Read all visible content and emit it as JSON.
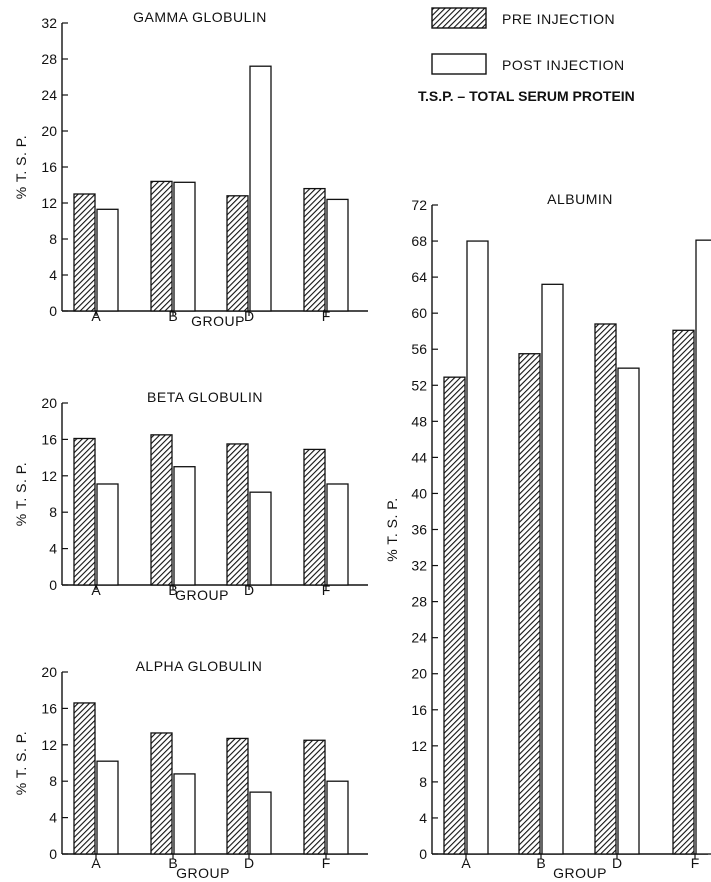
{
  "legend": {
    "pre_label": "PRE INJECTION",
    "post_label": "POST INJECTION",
    "note": "T.S.P. – TOTAL SERUM PROTEIN"
  },
  "colors": {
    "ink": "#111111",
    "post_fill": "#ffffff"
  },
  "chart_data": [
    {
      "type": "bar",
      "title": "GAMMA GLOBULIN",
      "xlabel": "GROUP",
      "ylabel": "% T. S. P.",
      "categories": [
        "A",
        "B",
        "D",
        "F"
      ],
      "ylim": [
        0,
        32
      ],
      "yticks": [
        0,
        4,
        8,
        12,
        16,
        20,
        24,
        28,
        32
      ],
      "series": [
        {
          "name": "PRE INJECTION",
          "pattern": "hatched",
          "values": [
            13.0,
            14.4,
            12.8,
            13.6
          ]
        },
        {
          "name": "POST INJECTION",
          "pattern": "open",
          "values": [
            11.3,
            14.3,
            27.2,
            12.4
          ]
        }
      ]
    },
    {
      "type": "bar",
      "title": "BETA GLOBULIN",
      "xlabel": "GROUP",
      "ylabel": "% T. S. P.",
      "categories": [
        "A",
        "B",
        "D",
        "F"
      ],
      "ylim": [
        0,
        20
      ],
      "yticks": [
        0,
        4,
        8,
        12,
        16,
        20
      ],
      "series": [
        {
          "name": "PRE INJECTION",
          "pattern": "hatched",
          "values": [
            16.1,
            16.5,
            15.5,
            14.9
          ]
        },
        {
          "name": "POST INJECTION",
          "pattern": "open",
          "values": [
            11.1,
            13.0,
            10.2,
            11.1
          ]
        }
      ]
    },
    {
      "type": "bar",
      "title": "ALPHA GLOBULIN",
      "xlabel": "GROUP",
      "ylabel": "% T. S. P.",
      "categories": [
        "A",
        "B",
        "D",
        "F"
      ],
      "ylim": [
        0,
        20
      ],
      "yticks": [
        0,
        4,
        8,
        12,
        16,
        20
      ],
      "series": [
        {
          "name": "PRE INJECTION",
          "pattern": "hatched",
          "values": [
            16.6,
            13.3,
            12.7,
            12.5
          ]
        },
        {
          "name": "POST INJECTION",
          "pattern": "open",
          "values": [
            10.2,
            8.8,
            6.8,
            8.0
          ]
        }
      ]
    },
    {
      "type": "bar",
      "title": "ALBUMIN",
      "xlabel": "GROUP",
      "ylabel": "% T. S. P.",
      "categories": [
        "A",
        "B",
        "D",
        "F"
      ],
      "ylim": [
        0,
        72
      ],
      "yticks": [
        0,
        4,
        8,
        12,
        16,
        20,
        24,
        28,
        32,
        36,
        40,
        44,
        48,
        52,
        56,
        60,
        64,
        68,
        72
      ],
      "series": [
        {
          "name": "PRE INJECTION",
          "pattern": "hatched",
          "values": [
            52.9,
            55.5,
            58.8,
            58.1
          ]
        },
        {
          "name": "POST INJECTION",
          "pattern": "open",
          "values": [
            68.0,
            63.2,
            53.9,
            68.1
          ]
        }
      ]
    }
  ]
}
